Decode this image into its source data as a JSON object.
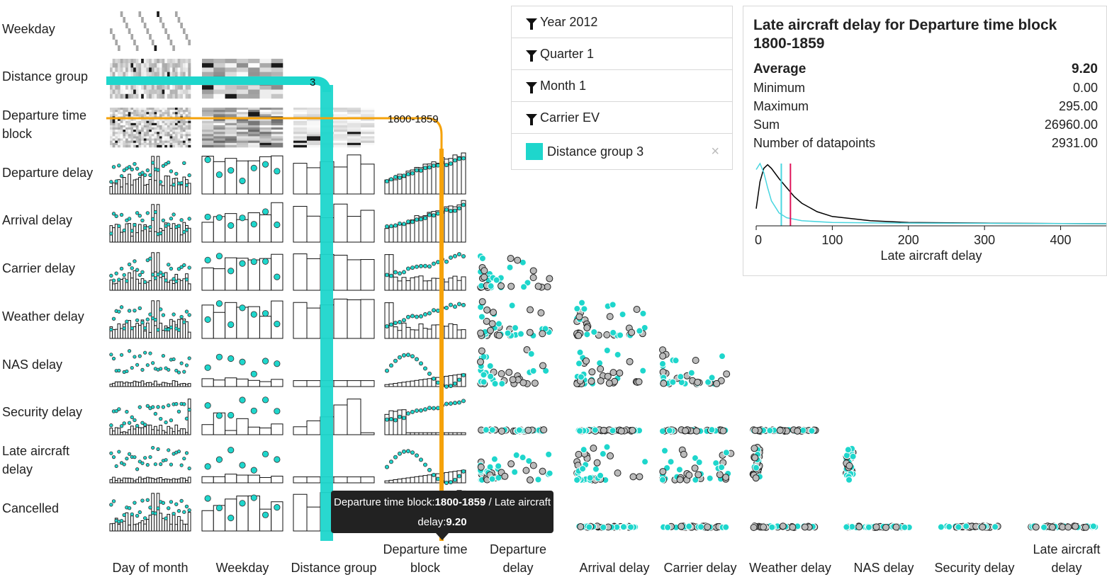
{
  "rows": [
    "Weekday",
    "Distance group",
    "Departure time block",
    "Departure delay",
    "Arrival delay",
    "Carrier delay",
    "Weather delay",
    "NAS delay",
    "Security delay",
    "Late aircraft delay",
    "Cancelled"
  ],
  "row_labels": [
    [
      "Weekday"
    ],
    [
      "Distance group"
    ],
    [
      "Departure time",
      "block"
    ],
    [
      "Departure delay"
    ],
    [
      "Arrival delay"
    ],
    [
      "Carrier delay"
    ],
    [
      "Weather delay"
    ],
    [
      "NAS delay"
    ],
    [
      "Security delay"
    ],
    [
      "Late aircraft",
      "delay"
    ],
    [
      "Cancelled"
    ]
  ],
  "col_labels": [
    [
      "Day of month"
    ],
    [
      "Weekday"
    ],
    [
      "Distance group"
    ],
    [
      "Departure time",
      "block"
    ],
    [
      "Departure",
      "delay"
    ],
    [
      "Arrival delay"
    ],
    [
      "Carrier delay"
    ],
    [
      "Weather delay"
    ],
    [
      "NAS delay"
    ],
    [
      "Security delay"
    ],
    [
      "Late aircraft",
      "delay"
    ]
  ],
  "highlight": {
    "distance_group_label": "3",
    "time_block_label": "1800-1859",
    "distance_color": "#1ed6cc",
    "time_color": "#f5a20a"
  },
  "filters": [
    {
      "label": "Year 2012",
      "icon": "filter-icon"
    },
    {
      "label": "Quarter 1",
      "icon": "filter-icon"
    },
    {
      "label": "Month 1",
      "icon": "filter-icon"
    },
    {
      "label": "Carrier EV",
      "icon": "filter-icon"
    },
    {
      "label": "Distance group 3",
      "icon": "swatch",
      "color": "#1ed6cc",
      "close": "×"
    }
  ],
  "detail": {
    "title": "Late aircraft delay for Departure time block 1800-1859",
    "stats": [
      {
        "label": "Average",
        "value": "9.20"
      },
      {
        "label": "Minimum",
        "value": "0.00"
      },
      {
        "label": "Maximum",
        "value": "295.00"
      },
      {
        "label": "Sum",
        "value": "26960.00"
      },
      {
        "label": "Number of datapoints",
        "value": "2931.00"
      }
    ]
  },
  "tooltip": {
    "prefix": "Departure time block:",
    "block": "1800-1859",
    "mid": " / Late aircraft delay:",
    "value": "9.20"
  },
  "chart_data": {
    "type": "line",
    "title": "Late aircraft delay for Departure time block 1800-1859",
    "xlabel": "Late aircraft delay",
    "xticks": [
      0,
      100,
      200,
      300,
      400
    ],
    "xlim": [
      0,
      460
    ],
    "series": [
      {
        "color": "#000000",
        "x": [
          0,
          5,
          10,
          15,
          20,
          30,
          40,
          50,
          60,
          80,
          100,
          150,
          200,
          300,
          460
        ],
        "values": [
          0.25,
          0.7,
          0.92,
          0.98,
          0.92,
          0.75,
          0.6,
          0.45,
          0.34,
          0.2,
          0.12,
          0.05,
          0.02,
          0.01,
          0.0
        ]
      },
      {
        "color": "#49d6e0",
        "x": [
          0,
          5,
          10,
          15,
          20,
          30,
          40,
          60,
          100,
          200,
          460
        ],
        "values": [
          0.9,
          1.0,
          0.85,
          0.6,
          0.38,
          0.18,
          0.1,
          0.05,
          0.02,
          0.01,
          0.0
        ]
      }
    ],
    "markers": [
      {
        "x": 33,
        "color": "#49d6e0"
      },
      {
        "x": 45,
        "color": "#e0145a"
      }
    ]
  }
}
